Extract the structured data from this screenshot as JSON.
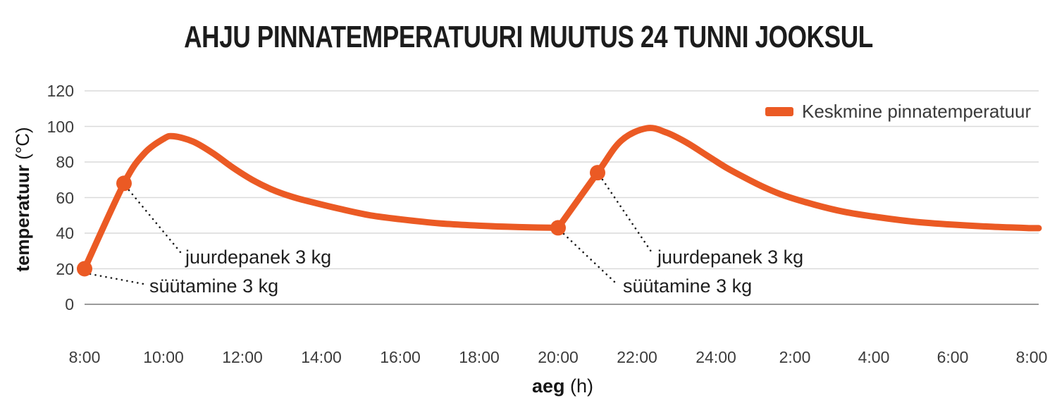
{
  "chart_data": {
    "type": "line",
    "title": "AHJU PINNATEMPERATUURI MUUTUS 24 TUNNI JOOKSUL",
    "xlabel": "aeg (h)",
    "xlabel_bold": "aeg",
    "xlabel_unit": " (h)",
    "ylabel": "temperatuur (°C)",
    "ylabel_bold": "temperatuur",
    "ylabel_unit": " (°C)",
    "x_ticks": [
      "8:00",
      "10:00",
      "12:00",
      "14:00",
      "16:00",
      "18:00",
      "20:00",
      "22:00",
      "24:00",
      "2:00",
      "4:00",
      "6:00",
      "8:00"
    ],
    "x_tick_hours_from_start": [
      0,
      2,
      4,
      6,
      8,
      10,
      12,
      14,
      16,
      18,
      20,
      22,
      24
    ],
    "y_ticks": [
      0,
      20,
      40,
      60,
      80,
      100,
      120
    ],
    "ylim": [
      0,
      120
    ],
    "x_span_hours": 24,
    "grid": "horizontal-only",
    "line_color": "#EB5A24",
    "gridline_color": "#dadada",
    "zeroline_color": "#9b9b9b",
    "legend": {
      "position": "top-right",
      "entries": [
        "Keskmine pinnatemperatuur"
      ]
    },
    "series": [
      {
        "name": "Keskmine pinnatemperatuur",
        "color": "#EB5A24",
        "x_unit": "hours since 8:00",
        "segments": [
          [
            [
              0,
              20
            ],
            [
              1,
              68
            ],
            [
              1.5,
              84.5
            ],
            [
              2,
              93
            ],
            [
              2.25,
              94.5
            ],
            [
              2.75,
              91.5
            ],
            [
              3.25,
              85
            ],
            [
              3.75,
              77
            ],
            [
              4.25,
              70
            ],
            [
              4.75,
              64.5
            ],
            [
              5.25,
              60.5
            ],
            [
              5.75,
              57.5
            ],
            [
              6.5,
              53.5
            ],
            [
              7.25,
              50
            ],
            [
              8,
              47.8
            ],
            [
              9,
              45.5
            ],
            [
              10,
              44.2
            ],
            [
              11,
              43.4
            ],
            [
              12,
              43
            ]
          ],
          [
            [
              12,
              43
            ],
            [
              13,
              74
            ],
            [
              13.6,
              92
            ],
            [
              14.25,
              99
            ],
            [
              14.75,
              96.5
            ],
            [
              15.25,
              91
            ],
            [
              15.75,
              84
            ],
            [
              16.25,
              77
            ],
            [
              16.75,
              71
            ],
            [
              17.25,
              65.5
            ],
            [
              17.75,
              61
            ],
            [
              18.5,
              56
            ],
            [
              19.25,
              52
            ],
            [
              20,
              49.3
            ],
            [
              21,
              46.5
            ],
            [
              22,
              44.8
            ],
            [
              23,
              43.6
            ],
            [
              24,
              42.8
            ]
          ]
        ]
      }
    ],
    "annotations": [
      {
        "label": "süütamine 3 kg",
        "time": "8:00",
        "t": 0,
        "temp": 20
      },
      {
        "label": "juurdepanek 3 kg",
        "time": "9:00",
        "t": 1,
        "temp": 68
      },
      {
        "label": "süütamine 3 kg",
        "time": "20:00",
        "t": 12,
        "temp": 43
      },
      {
        "label": "juurdepanek 3 kg",
        "time": "21:00",
        "t": 13,
        "temp": 74
      }
    ]
  }
}
